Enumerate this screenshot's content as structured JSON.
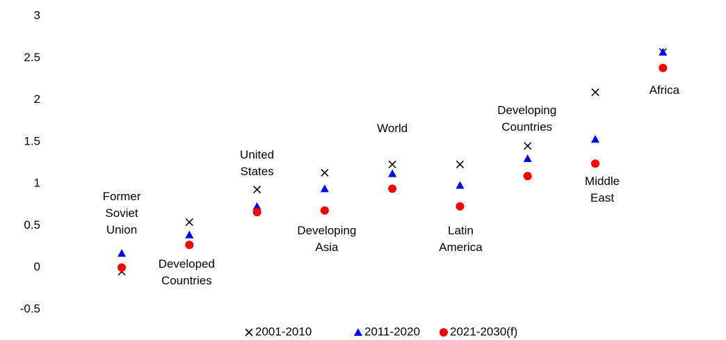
{
  "chart_data": {
    "type": "scatter",
    "categories": [
      "Former Soviet Union",
      "Developed Countries",
      "United States",
      "Developing Asia",
      "World",
      "Latin America",
      "Developing Countries",
      "Middle East",
      "Africa"
    ],
    "series": [
      {
        "name": "2001-2010",
        "marker": "x",
        "color": "#000000",
        "values": [
          -0.05,
          0.54,
          0.93,
          1.13,
          1.23,
          1.23,
          1.45,
          2.09,
          2.57
        ]
      },
      {
        "name": "2011-2020",
        "marker": "triangle",
        "color": "#0000ff",
        "values": [
          0.17,
          0.39,
          0.73,
          0.94,
          1.12,
          0.98,
          1.3,
          1.53,
          2.57
        ]
      },
      {
        "name": "2021-2030(f)",
        "marker": "circle",
        "color": "#ff0000",
        "values": [
          0.0,
          0.27,
          0.66,
          0.68,
          0.94,
          0.73,
          1.09,
          1.24,
          2.38
        ]
      }
    ],
    "ylim": [
      -0.5,
      3
    ],
    "yticks": [
      -0.5,
      0,
      0.5,
      1,
      1.5,
      2,
      2.5,
      3
    ],
    "grid": false,
    "legend": "bottom"
  }
}
